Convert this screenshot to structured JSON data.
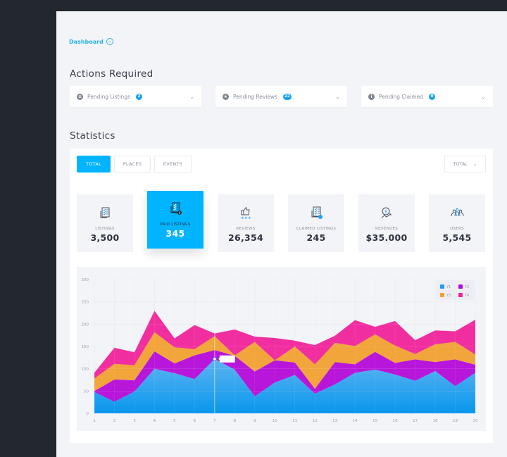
{
  "breadcrumb": {
    "label": "Dashboard",
    "icon": "chevron-down-circle-icon"
  },
  "actions": {
    "title": "Actions Required",
    "items": [
      {
        "label": "Pending Listings",
        "count": "2",
        "icon": "list-icon",
        "glyph": "≡"
      },
      {
        "label": "Pending Reviews",
        "count": "22",
        "icon": "star-icon",
        "glyph": "★"
      },
      {
        "label": "Pending Claimed",
        "count": "0",
        "icon": "info-icon",
        "glyph": "i"
      }
    ],
    "chevron": "⌄"
  },
  "statistics": {
    "title": "Statistics",
    "tabs": [
      {
        "label": "TOTAL",
        "active": true
      },
      {
        "label": "PLACES",
        "active": false
      },
      {
        "label": "EVENTS",
        "active": false
      }
    ],
    "period_select": {
      "value": "TOTAL",
      "chevron": "⌄"
    },
    "cards": [
      {
        "label": "LISTINGS",
        "value": "3,500",
        "icon": "checklist-icon",
        "active": false
      },
      {
        "label": "PAID LISTINGS",
        "value": "345",
        "icon": "paid-checklist-icon",
        "active": true
      },
      {
        "label": "REVIEWS",
        "value": "26,354",
        "icon": "thumbs-up-stars-icon",
        "active": false
      },
      {
        "label": "CLAIMED LISTINGS",
        "value": "245",
        "icon": "claimed-checklist-icon",
        "active": false
      },
      {
        "label": "REVENUES",
        "value": "$35.000",
        "icon": "revenue-growth-icon",
        "active": false
      },
      {
        "label": "USERS",
        "value": "5,545",
        "icon": "users-group-icon",
        "active": false
      }
    ]
  },
  "colors": {
    "accent": "#00b4ff",
    "y1": "#1a9ff0",
    "y2": "#b40ad8",
    "y3": "#f0a030",
    "y4": "#f0239a"
  },
  "chart_data": {
    "type": "area",
    "stacked": true,
    "title": "",
    "xlabel": "",
    "ylabel": "",
    "x": [
      1,
      2,
      3,
      4,
      5,
      6,
      7,
      8,
      9,
      10,
      11,
      12,
      13,
      14,
      15,
      16,
      17,
      18,
      19,
      20
    ],
    "ylim": [
      0,
      300
    ],
    "yticks": [
      0,
      50,
      100,
      150,
      200,
      250,
      300
    ],
    "grid": true,
    "legend_position": "top-right",
    "series": [
      {
        "name": "Y1",
        "color": "#1a9ff0",
        "values": [
          48,
          26,
          49,
          100,
          90,
          77,
          122,
          98,
          38,
          69,
          86,
          44,
          65,
          91,
          98,
          87,
          73,
          95,
          61,
          91
        ]
      },
      {
        "name": "Y2",
        "color": "#b40ad8",
        "values": [
          2,
          50,
          25,
          39,
          22,
          53,
          20,
          31,
          56,
          50,
          28,
          11,
          50,
          19,
          40,
          26,
          48,
          20,
          60,
          18
        ]
      },
      {
        "name": "Y3",
        "color": "#f0a030",
        "values": [
          28,
          35,
          34,
          43,
          36,
          14,
          31,
          1,
          66,
          0,
          36,
          55,
          43,
          41,
          39,
          39,
          12,
          40,
          39,
          23
        ]
      },
      {
        "name": "Y4",
        "color": "#f0239a",
        "values": [
          13,
          36,
          29,
          48,
          20,
          54,
          6,
          58,
          12,
          50,
          13,
          43,
          16,
          58,
          17,
          55,
          31,
          31,
          24,
          78
        ]
      }
    ],
    "tooltip": {
      "x": 7,
      "series": "Y1",
      "text": ""
    }
  }
}
